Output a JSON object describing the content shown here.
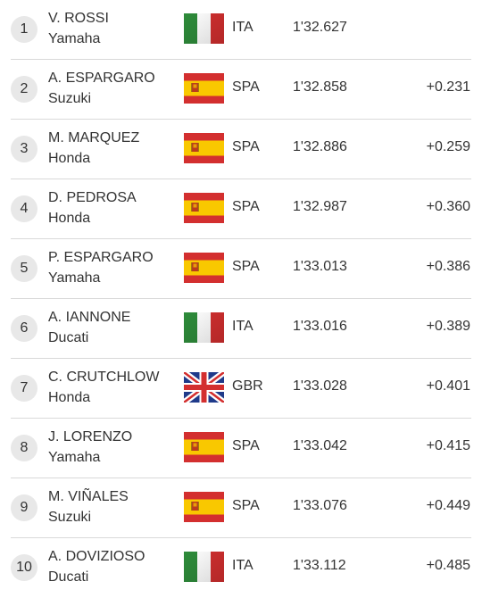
{
  "results": [
    {
      "position": "1",
      "rider": "V. ROSSI",
      "team": "Yamaha",
      "country": "ITA",
      "flag": "italy-flag-icon",
      "time": "1'32.627",
      "gap": ""
    },
    {
      "position": "2",
      "rider": "A. ESPARGARO",
      "team": "Suzuki",
      "country": "SPA",
      "flag": "spain-flag-icon",
      "time": "1'32.858",
      "gap": "+0.231"
    },
    {
      "position": "3",
      "rider": "M. MARQUEZ",
      "team": "Honda",
      "country": "SPA",
      "flag": "spain-flag-icon",
      "time": "1'32.886",
      "gap": "+0.259"
    },
    {
      "position": "4",
      "rider": "D. PEDROSA",
      "team": "Honda",
      "country": "SPA",
      "flag": "spain-flag-icon",
      "time": "1'32.987",
      "gap": "+0.360"
    },
    {
      "position": "5",
      "rider": "P. ESPARGARO",
      "team": "Yamaha",
      "country": "SPA",
      "flag": "spain-flag-icon",
      "time": "1'33.013",
      "gap": "+0.386"
    },
    {
      "position": "6",
      "rider": "A. IANNONE",
      "team": "Ducati",
      "country": "ITA",
      "flag": "italy-flag-icon",
      "time": "1'33.016",
      "gap": "+0.389"
    },
    {
      "position": "7",
      "rider": "C. CRUTCHLOW",
      "team": "Honda",
      "country": "GBR",
      "flag": "uk-flag-icon",
      "time": "1'33.028",
      "gap": "+0.401"
    },
    {
      "position": "8",
      "rider": "J. LORENZO",
      "team": "Yamaha",
      "country": "SPA",
      "flag": "spain-flag-icon",
      "time": "1'33.042",
      "gap": "+0.415"
    },
    {
      "position": "9",
      "rider": "M. VIÑALES",
      "team": "Suzuki",
      "country": "SPA",
      "flag": "spain-flag-icon",
      "time": "1'33.076",
      "gap": "+0.449"
    },
    {
      "position": "10",
      "rider": "A. DOVIZIOSO",
      "team": "Ducati",
      "country": "ITA",
      "flag": "italy-flag-icon",
      "time": "1'33.112",
      "gap": "+0.485"
    }
  ],
  "colors": {
    "italy_green": "#2e8b3a",
    "italy_white": "#ffffff",
    "italy_red": "#d32f2f",
    "spain_red": "#d32f2f",
    "spain_yellow": "#f9c800",
    "uk_blue": "#1f3a8a",
    "uk_red": "#d32f2f",
    "uk_white": "#ffffff",
    "position_circle": "#e8e8e8",
    "divider": "#d9d9d9"
  }
}
